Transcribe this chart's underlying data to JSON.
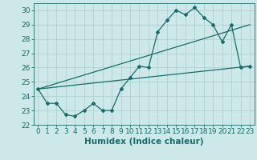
{
  "title": "",
  "xlabel": "Humidex (Indice chaleur)",
  "ylabel": "",
  "bg_color": "#cce8e8",
  "line_color": "#1a6b6b",
  "xlim": [
    -0.5,
    23.5
  ],
  "ylim": [
    22,
    30.5
  ],
  "yticks": [
    22,
    23,
    24,
    25,
    26,
    27,
    28,
    29,
    30
  ],
  "xticks": [
    0,
    1,
    2,
    3,
    4,
    5,
    6,
    7,
    8,
    9,
    10,
    11,
    12,
    13,
    14,
    15,
    16,
    17,
    18,
    19,
    20,
    21,
    22,
    23
  ],
  "series1_x": [
    0,
    1,
    2,
    3,
    4,
    5,
    6,
    7,
    8,
    9,
    10,
    11,
    12,
    13,
    14,
    15,
    16,
    17,
    18,
    19,
    20,
    21,
    22,
    23
  ],
  "series1_y": [
    24.5,
    23.5,
    23.5,
    22.7,
    22.6,
    23.0,
    23.5,
    23.0,
    23.0,
    24.5,
    25.3,
    26.1,
    26.0,
    28.5,
    29.3,
    30.0,
    29.7,
    30.2,
    29.5,
    29.0,
    27.8,
    29.0,
    26.0,
    26.1
  ],
  "series2_x": [
    0,
    23
  ],
  "series2_y": [
    24.5,
    29.0
  ],
  "series3_x": [
    0,
    23
  ],
  "series3_y": [
    24.5,
    26.1
  ],
  "grid_color": "#aacccc",
  "tick_fontsize": 6.5,
  "label_fontsize": 7.5
}
